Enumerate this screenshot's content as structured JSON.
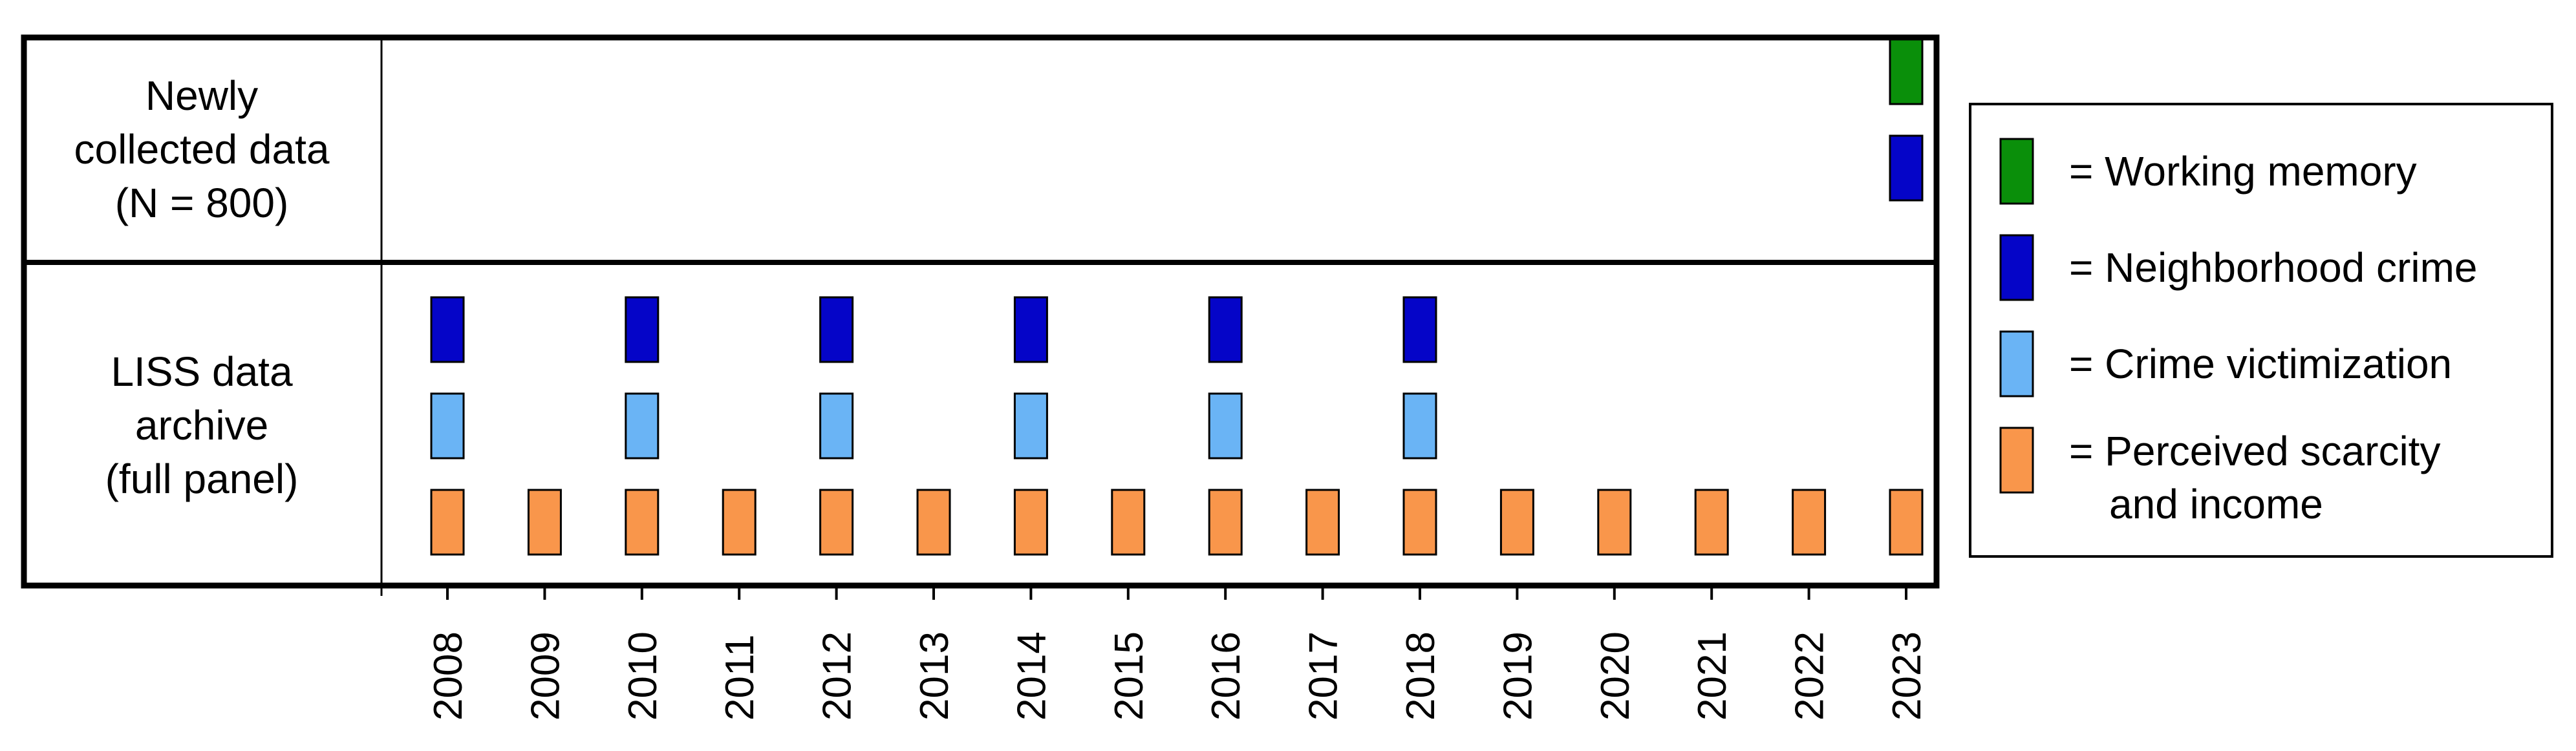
{
  "rows": {
    "newly_collected": {
      "line1": "Newly",
      "line2": "collected data",
      "line3": "(N = 800)"
    },
    "liss": {
      "line1": "LISS data",
      "line2": "archive",
      "line3": "(full panel)"
    }
  },
  "years": [
    "2008",
    "2009",
    "2010",
    "2011",
    "2012",
    "2013",
    "2014",
    "2015",
    "2016",
    "2017",
    "2018",
    "2019",
    "2020",
    "2021",
    "2022",
    "2023"
  ],
  "legend": [
    {
      "key": "working_memory",
      "line1": "= Working memory",
      "line2": "",
      "color": "#0a8f0a"
    },
    {
      "key": "neighborhood_crime",
      "line1": "= Neighborhood crime",
      "line2": "",
      "color": "#0505c8"
    },
    {
      "key": "crime_victimization",
      "line1": "= Crime victimization",
      "line2": "",
      "color": "#6ab4f5"
    },
    {
      "key": "perceived_scarcity",
      "line1": "= Perceived scarcity",
      "line2": "and income",
      "color": "#f9964b"
    }
  ],
  "measurements": {
    "newly_collected": {
      "working_memory": [
        "2023"
      ],
      "neighborhood_crime": [
        "2023"
      ]
    },
    "liss": {
      "neighborhood_crime": [
        "2008",
        "2010",
        "2012",
        "2014",
        "2016",
        "2018"
      ],
      "crime_victimization": [
        "2008",
        "2010",
        "2012",
        "2014",
        "2016",
        "2018"
      ],
      "perceived_scarcity": [
        "2008",
        "2009",
        "2010",
        "2011",
        "2012",
        "2013",
        "2014",
        "2015",
        "2016",
        "2017",
        "2018",
        "2019",
        "2020",
        "2021",
        "2022",
        "2023"
      ]
    }
  }
}
